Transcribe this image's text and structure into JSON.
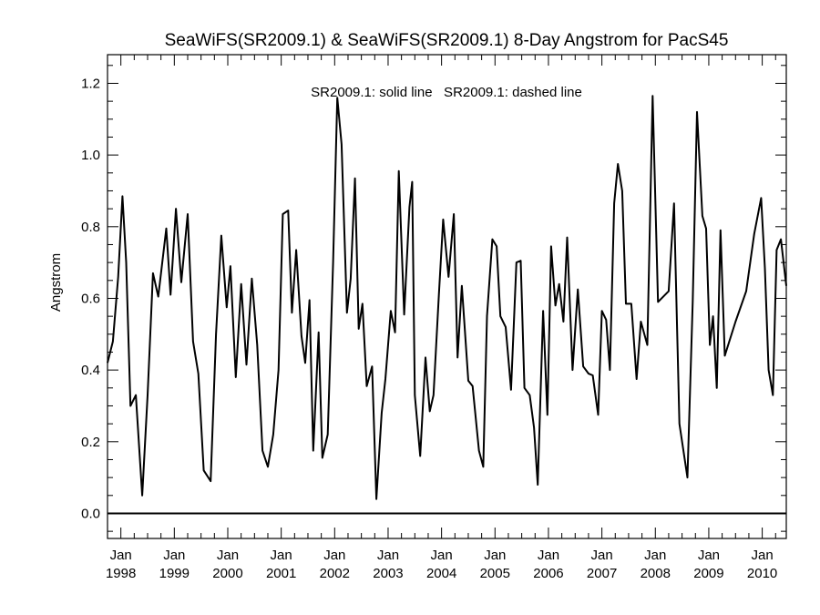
{
  "chart_data": {
    "type": "line",
    "title": "SeaWiFS(SR2009.1) & SeaWiFS(SR2009.1) 8-Day Angstrom for PacS45",
    "ylabel": "Angstrom",
    "xlabel": "",
    "annotation": "SR2009.1: solid line   SR2009.1: dashed line",
    "xlim": [
      1997.75,
      2010.45
    ],
    "ylim": [
      -0.07,
      1.28
    ],
    "y_ticks": [
      0.0,
      0.2,
      0.4,
      0.6,
      0.8,
      1.0,
      1.2
    ],
    "y_tick_labels": [
      "0.0",
      "0.2",
      "0.4",
      "0.6",
      "0.8",
      "1.0",
      "1.2"
    ],
    "x_ticks": [
      1998,
      1999,
      2000,
      2001,
      2002,
      2003,
      2004,
      2005,
      2006,
      2007,
      2008,
      2009,
      2010
    ],
    "x_tick_labels": [
      [
        "Jan",
        "1998"
      ],
      [
        "Jan",
        "1999"
      ],
      [
        "Jan",
        "2000"
      ],
      [
        "Jan",
        "2001"
      ],
      [
        "Jan",
        "2002"
      ],
      [
        "Jan",
        "2003"
      ],
      [
        "Jan",
        "2004"
      ],
      [
        "Jan",
        "2005"
      ],
      [
        "Jan",
        "2006"
      ],
      [
        "Jan",
        "2007"
      ],
      [
        "Jan",
        "2008"
      ],
      [
        "Jan",
        "2009"
      ],
      [
        "Jan",
        "2010"
      ]
    ],
    "reference_line": 0.0,
    "grid": false,
    "series": [
      {
        "style": "solid",
        "color": "#000000",
        "x": [
          1997.75,
          1997.85,
          1997.95,
          1998.03,
          1998.1,
          1998.18,
          1998.28,
          1998.4,
          1998.5,
          1998.6,
          1998.7,
          1998.85,
          1998.93,
          1999.03,
          1999.13,
          1999.25,
          1999.35,
          1999.45,
          1999.55,
          1999.68,
          1999.78,
          1999.88,
          1999.98,
          2000.05,
          2000.15,
          2000.25,
          2000.35,
          2000.45,
          2000.55,
          2000.65,
          2000.75,
          2000.85,
          2000.95,
          2001.03,
          2001.13,
          2001.2,
          2001.28,
          2001.38,
          2001.45,
          2001.53,
          2001.6,
          2001.7,
          2001.77,
          2001.87,
          2001.97,
          2002.05,
          2002.13,
          2002.23,
          2002.3,
          2002.38,
          2002.45,
          2002.52,
          2002.6,
          2002.7,
          2002.78,
          2002.88,
          2002.95,
          2003.05,
          2003.13,
          2003.2,
          2003.3,
          2003.4,
          2003.45,
          2003.5,
          2003.6,
          2003.7,
          2003.78,
          2003.85,
          2003.95,
          2004.03,
          2004.13,
          2004.23,
          2004.3,
          2004.38,
          2004.5,
          2004.58,
          2004.7,
          2004.78,
          2004.85,
          2004.95,
          2005.03,
          2005.1,
          2005.2,
          2005.3,
          2005.4,
          2005.48,
          2005.55,
          2005.65,
          2005.73,
          2005.8,
          2005.9,
          2005.98,
          2006.05,
          2006.13,
          2006.2,
          2006.28,
          2006.35,
          2006.45,
          2006.55,
          2006.65,
          2006.75,
          2006.83,
          2006.93,
          2007.0,
          2007.08,
          2007.15,
          2007.23,
          2007.3,
          2007.38,
          2007.45,
          2007.55,
          2007.65,
          2007.73,
          2007.85,
          2007.95,
          2008.05,
          2008.25,
          2008.35,
          2008.45,
          2008.6,
          2008.7,
          2008.78,
          2008.88,
          2008.95,
          2009.02,
          2009.08,
          2009.15,
          2009.22,
          2009.3,
          2009.5,
          2009.7,
          2009.85,
          2009.98,
          2010.05,
          2010.12,
          2010.2,
          2010.27,
          2010.35,
          2010.45
        ],
        "y": [
          0.42,
          0.48,
          0.66,
          0.885,
          0.7,
          0.3,
          0.33,
          0.05,
          0.33,
          0.67,
          0.605,
          0.795,
          0.61,
          0.85,
          0.645,
          0.835,
          0.48,
          0.39,
          0.12,
          0.09,
          0.5,
          0.775,
          0.575,
          0.69,
          0.38,
          0.64,
          0.415,
          0.655,
          0.47,
          0.175,
          0.13,
          0.22,
          0.4,
          0.835,
          0.845,
          0.56,
          0.735,
          0.495,
          0.42,
          0.595,
          0.175,
          0.505,
          0.155,
          0.22,
          0.7,
          1.16,
          1.03,
          0.56,
          0.655,
          0.935,
          0.515,
          0.585,
          0.355,
          0.41,
          0.04,
          0.28,
          0.375,
          0.565,
          0.505,
          0.955,
          0.555,
          0.855,
          0.925,
          0.33,
          0.16,
          0.435,
          0.285,
          0.33,
          0.61,
          0.82,
          0.66,
          0.835,
          0.435,
          0.635,
          0.37,
          0.355,
          0.175,
          0.13,
          0.55,
          0.765,
          0.745,
          0.55,
          0.52,
          0.345,
          0.7,
          0.705,
          0.35,
          0.33,
          0.24,
          0.08,
          0.565,
          0.275,
          0.745,
          0.58,
          0.64,
          0.535,
          0.77,
          0.4,
          0.625,
          0.41,
          0.39,
          0.385,
          0.275,
          0.565,
          0.54,
          0.4,
          0.865,
          0.975,
          0.9,
          0.585,
          0.585,
          0.375,
          0.535,
          0.47,
          1.165,
          0.59,
          0.62,
          0.865,
          0.25,
          0.1,
          0.59,
          1.12,
          0.83,
          0.795,
          0.47,
          0.55,
          0.35,
          0.79,
          0.44,
          0.535,
          0.62,
          0.78,
          0.88,
          0.685,
          0.4,
          0.33,
          0.735,
          0.765,
          0.635
        ]
      }
    ]
  }
}
